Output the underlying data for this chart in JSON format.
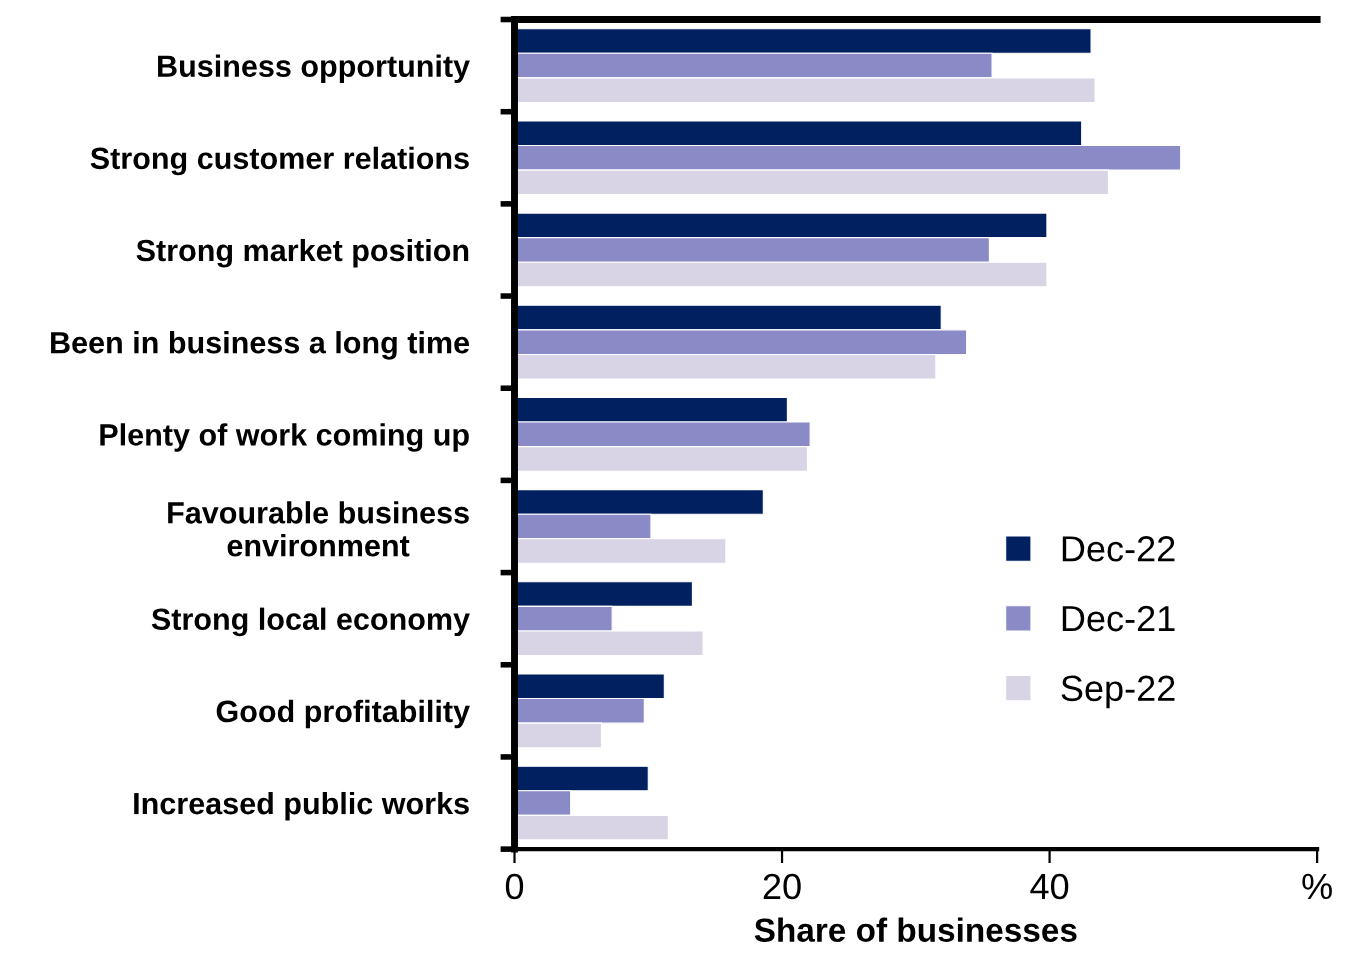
{
  "chart_data": {
    "type": "bar",
    "orientation": "horizontal",
    "xlabel": "Share of businesses",
    "categories": [
      "Business opportunity",
      "Strong customer relations",
      "Strong market position",
      "Been in business a long time",
      "Plenty of work coming up",
      "Favourable business\nenvironment",
      "Strong local economy",
      "Good profitability",
      "Increased public works"
    ],
    "series": [
      {
        "name": "Dec-22",
        "color": "#00205f",
        "values": [
          43.1,
          42.4,
          39.8,
          31.9,
          20.4,
          18.6,
          13.3,
          11.2,
          10.0
        ]
      },
      {
        "name": "Dec-21",
        "color": "#8a8ac6",
        "values": [
          35.7,
          49.8,
          35.5,
          33.8,
          22.1,
          10.2,
          7.3,
          9.7,
          4.2
        ]
      },
      {
        "name": "Sep-22",
        "color": "#d8d4e6",
        "values": [
          43.4,
          44.4,
          39.8,
          31.5,
          21.9,
          15.8,
          14.1,
          6.5,
          11.5
        ]
      }
    ],
    "xlim": [
      0,
      60
    ],
    "xticks": [
      0,
      20,
      40,
      {
        "value": 60,
        "label": "%"
      }
    ],
    "grid": false,
    "legend": "lower right"
  }
}
